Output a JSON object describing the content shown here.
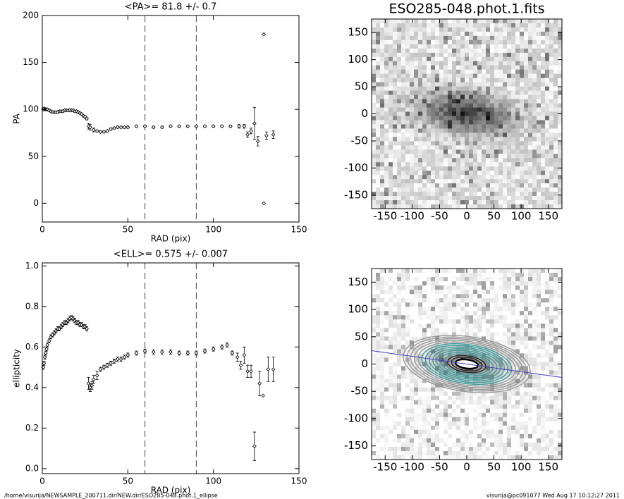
{
  "chart_data": [
    {
      "type": "errorscatter",
      "title": "<PA>=  81.8 +/-   0.7",
      "x_label": "RAD (pix)",
      "y_label": "PA",
      "xlim": [
        0,
        150
      ],
      "xticks": [
        0,
        50,
        100,
        150
      ],
      "ylim": [
        -20,
        200
      ],
      "yticks": [
        0,
        50,
        100,
        150,
        200
      ],
      "vlines": [
        60,
        90
      ],
      "x": [
        0.5,
        1,
        1.5,
        2,
        2.5,
        3,
        4,
        5,
        6,
        7,
        8,
        9,
        10,
        11,
        12,
        13,
        14,
        15,
        16,
        17,
        18,
        19,
        20,
        21,
        22,
        23,
        24,
        25,
        26,
        27,
        28,
        30,
        32,
        34,
        36,
        38,
        40,
        42,
        44,
        46,
        48,
        50,
        55,
        60,
        65,
        70,
        75,
        80,
        85,
        90,
        95,
        100,
        105,
        110,
        115,
        118,
        120,
        122,
        124,
        126,
        129.5,
        129.5,
        131,
        135
      ],
      "values": [
        100,
        101,
        100,
        100,
        100,
        100,
        99,
        98,
        97,
        97,
        97,
        97,
        98,
        98,
        98,
        99,
        99,
        99,
        99,
        99,
        99,
        98,
        98,
        97,
        96,
        95,
        93,
        92,
        90,
        82,
        81,
        78,
        77,
        76,
        76,
        77,
        79,
        80,
        81,
        81,
        81,
        81,
        82,
        82,
        81,
        81,
        82,
        82,
        82,
        82,
        82,
        82,
        82,
        82,
        82,
        82,
        73,
        77,
        85,
        66,
        180,
        0,
        72,
        73
      ],
      "errors": [
        1,
        1,
        1,
        1,
        1,
        1,
        1,
        1,
        1,
        1,
        1,
        1,
        1,
        1,
        1,
        1,
        1,
        1,
        1,
        1,
        1,
        1,
        1,
        1,
        1,
        1,
        1,
        1,
        1,
        3,
        3,
        2,
        1,
        1,
        1,
        1,
        1,
        1,
        1,
        1,
        1,
        1,
        1,
        1,
        1,
        1,
        1,
        1,
        1,
        1,
        1,
        1,
        1,
        1,
        2,
        2,
        3,
        3,
        17,
        5,
        null,
        null,
        4,
        4
      ]
    },
    {
      "type": "image",
      "title": "ESO285-048.phot.1.fits",
      "xlim": [
        -175,
        175
      ],
      "xticks": [
        -150,
        -100,
        -50,
        0,
        50,
        100,
        150
      ],
      "ylim": [
        -175,
        175
      ],
      "yticks": [
        -150,
        -100,
        -50,
        0,
        50,
        100,
        150
      ]
    },
    {
      "type": "errorscatter",
      "title": "<ELL>= 0.575 +/-  0.007",
      "x_label": "RAD (pix)",
      "y_label": "ellipticity",
      "xlim": [
        0,
        150
      ],
      "xticks": [
        0,
        50,
        100,
        150
      ],
      "ylim": [
        -0.025,
        1.015
      ],
      "yticks": [
        {
          "value": 0,
          "label": "0.0"
        },
        0.2,
        0.4,
        0.6,
        0.8,
        {
          "value": 1,
          "label": "1.0"
        }
      ],
      "vlines": [
        60,
        90
      ],
      "x": [
        0.5,
        1,
        1.5,
        2,
        2.5,
        3,
        4,
        5,
        6,
        7,
        8,
        9,
        10,
        11,
        12,
        13,
        14,
        15,
        16,
        17,
        18,
        19,
        20,
        21,
        22,
        23,
        24,
        25,
        26,
        27,
        28,
        29,
        30,
        32,
        34,
        36,
        38,
        40,
        42,
        44,
        46,
        48,
        50,
        55,
        60,
        65,
        70,
        75,
        80,
        85,
        90,
        95,
        100,
        105,
        108,
        111,
        114,
        116,
        118,
        120,
        122,
        124,
        127,
        129,
        132,
        135
      ],
      "values": [
        0.5,
        0.52,
        0.55,
        0.57,
        0.59,
        0.61,
        0.63,
        0.65,
        0.66,
        0.67,
        0.68,
        0.69,
        0.69,
        0.7,
        0.71,
        0.72,
        0.72,
        0.73,
        0.74,
        0.745,
        0.74,
        0.73,
        0.72,
        0.72,
        0.71,
        0.71,
        0.7,
        0.7,
        0.69,
        0.42,
        0.4,
        0.41,
        0.44,
        0.46,
        0.49,
        0.5,
        0.51,
        0.52,
        0.53,
        0.54,
        0.54,
        0.55,
        0.56,
        0.57,
        0.58,
        0.575,
        0.575,
        0.575,
        0.57,
        0.57,
        0.57,
        0.58,
        0.59,
        0.6,
        0.61,
        0.57,
        0.55,
        0.51,
        0.56,
        0.48,
        0.48,
        0.11,
        0.42,
        0.36,
        0.49,
        0.49
      ],
      "errors": [
        0.01,
        0.01,
        0.01,
        0.01,
        0.01,
        0.01,
        0.01,
        0.01,
        0.01,
        0.01,
        0.01,
        0.01,
        0.01,
        0.01,
        0.01,
        0.01,
        0.01,
        0.01,
        0.01,
        0.01,
        0.01,
        0.01,
        0.01,
        0.01,
        0.01,
        0.01,
        0.01,
        0.01,
        0.01,
        0.03,
        0.02,
        0.02,
        0.02,
        0.02,
        0.01,
        0.01,
        0.01,
        0.01,
        0.01,
        0.01,
        0.01,
        0.01,
        0.01,
        0.01,
        0.01,
        0.01,
        0.01,
        0.01,
        0.01,
        0.01,
        0.01,
        0.01,
        0.01,
        0.01,
        0.01,
        0.01,
        0.02,
        0.02,
        0.04,
        0.03,
        0.03,
        0.07,
        0.06,
        null,
        0.06,
        0.06
      ]
    },
    {
      "type": "image",
      "overlay": true,
      "xlim": [
        -175,
        175
      ],
      "xticks": [
        -150,
        -100,
        -50,
        0,
        50,
        100,
        150
      ],
      "ylim": [
        -175,
        175
      ],
      "yticks": [
        -150,
        -100,
        -50,
        0,
        50,
        100,
        150
      ]
    }
  ],
  "footer": {
    "left": "/home/visurija/NEWSAMPLE_200711.dir/NEW.dir/ESO285-048.phot.1_ellipse",
    "right": "visurija@pc091077  Wed Aug 17 10:12:27 2011"
  }
}
